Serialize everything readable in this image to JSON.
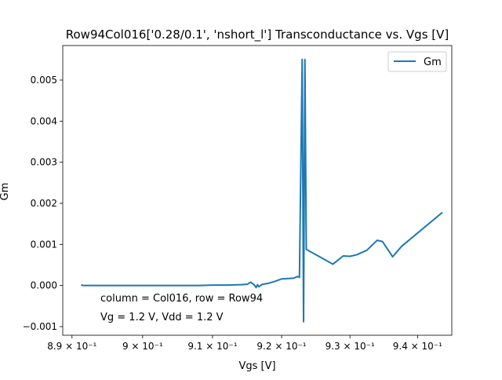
{
  "chart_data": {
    "type": "line",
    "title": "Row94Col016['0.28/0.1', 'nshort_l'] Transconductance vs. Vgs [V]",
    "xlabel": "Vgs [V]",
    "ylabel": "Gm",
    "xscale": "log",
    "xlim": [
      0.8887,
      0.9451
    ],
    "ylim": [
      -0.00121,
      0.00584
    ],
    "x_ticks": [
      {
        "value": 0.89,
        "label": "8.9 × 10⁻¹"
      },
      {
        "value": 0.9,
        "label": "9 × 10⁻¹"
      },
      {
        "value": 0.91,
        "label": "9.1 × 10⁻¹"
      },
      {
        "value": 0.92,
        "label": "9.2 × 10⁻¹"
      },
      {
        "value": 0.93,
        "label": "9.3 × 10⁻¹"
      },
      {
        "value": 0.94,
        "label": "9.4 × 10⁻¹"
      }
    ],
    "y_ticks": [
      {
        "value": -0.001,
        "label": "−0.001"
      },
      {
        "value": 0.0,
        "label": "0.000"
      },
      {
        "value": 0.001,
        "label": "0.001"
      },
      {
        "value": 0.002,
        "label": "0.002"
      },
      {
        "value": 0.003,
        "label": "0.003"
      },
      {
        "value": 0.004,
        "label": "0.004"
      },
      {
        "value": 0.005,
        "label": "0.005"
      }
    ],
    "legend": {
      "placement": "top-right"
    },
    "grid": false,
    "series": [
      {
        "name": "Gm",
        "color": "#1f77b4",
        "x": [
          0.8913,
          0.8915,
          0.893,
          0.896,
          0.9,
          0.905,
          0.908,
          0.91,
          0.912,
          0.914,
          0.915,
          0.9155,
          0.916,
          0.9163,
          0.9165,
          0.9167,
          0.9172,
          0.918,
          0.919,
          0.92,
          0.921,
          0.9218,
          0.9223,
          0.9226,
          0.923,
          0.9232,
          0.9234,
          0.9236,
          0.9275,
          0.929,
          0.93,
          0.931,
          0.9325,
          0.934,
          0.9348,
          0.9363,
          0.9376,
          0.9437
        ],
        "y": [
          2e-05,
          0.0,
          0.0,
          0.0,
          0.0,
          0.0,
          0.0,
          1e-05,
          1e-05,
          2e-05,
          3e-05,
          8e-05,
          2e-05,
          -5e-05,
          2e-05,
          -3e-05,
          3e-05,
          5e-05,
          0.0001,
          0.00016,
          0.00017,
          0.00018,
          0.00022,
          0.0002,
          0.0055,
          -0.00088,
          0.0055,
          0.00088,
          0.00052,
          0.00072,
          0.00071,
          0.00075,
          0.00086,
          0.0011,
          0.00107,
          0.0007,
          0.00095,
          0.00178
        ]
      }
    ],
    "annotations": [
      {
        "text": "column = Col016, row = Row94"
      },
      {
        "text": "Vg = 1.2 V, Vdd = 1.2 V"
      }
    ]
  }
}
